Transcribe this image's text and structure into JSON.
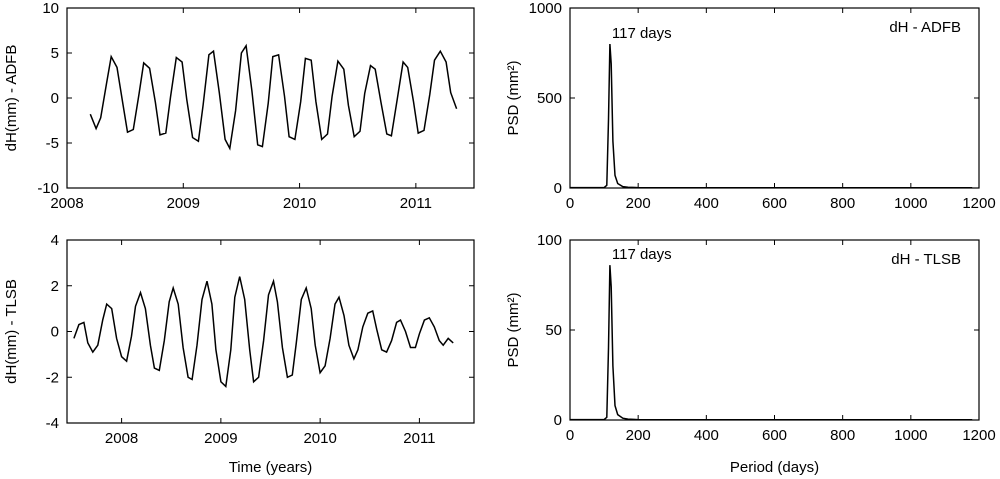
{
  "chart_data": [
    {
      "id": "adfb_ts",
      "type": "line",
      "title": "",
      "xlabel": "",
      "ylabel": "dH(mm) - ADFB",
      "xlim": [
        2008.0,
        2011.5
      ],
      "ylim": [
        -10,
        10
      ],
      "xticks": [
        2008,
        2009,
        2010,
        2011
      ],
      "xtick_labels": [
        "2008",
        "2009",
        "2010",
        "2011"
      ],
      "yticks": [
        -10,
        -5,
        0,
        5,
        10
      ],
      "ytick_labels": [
        "-10",
        "-5",
        "0",
        "5",
        "10"
      ],
      "series": [
        {
          "name": "dH ADFB",
          "x": [
            2008.2,
            2008.25,
            2008.29,
            2008.34,
            2008.38,
            2008.43,
            2008.48,
            2008.52,
            2008.57,
            2008.62,
            2008.66,
            2008.71,
            2008.76,
            2008.8,
            2008.85,
            2008.89,
            2008.94,
            2008.99,
            2009.03,
            2009.08,
            2009.13,
            2009.17,
            2009.22,
            2009.26,
            2009.31,
            2009.36,
            2009.4,
            2009.45,
            2009.5,
            2009.54,
            2009.59,
            2009.64,
            2009.68,
            2009.73,
            2009.77,
            2009.82,
            2009.87,
            2009.91,
            2009.96,
            2010.01,
            2010.05,
            2010.1,
            2010.14,
            2010.19,
            2010.24,
            2010.28,
            2010.33,
            2010.38,
            2010.42,
            2010.47,
            2010.52,
            2010.56,
            2010.61,
            2010.65,
            2010.7,
            2010.75,
            2010.79,
            2010.84,
            2010.89,
            2010.93,
            2010.98,
            2011.02,
            2011.07,
            2011.12,
            2011.16,
            2011.21,
            2011.26,
            2011.3,
            2011.35
          ],
          "y": [
            -1.8,
            -3.4,
            -2.2,
            1.6,
            4.6,
            3.4,
            -0.6,
            -3.8,
            -3.5,
            0.5,
            3.9,
            3.3,
            -0.5,
            -4.1,
            -3.9,
            0.1,
            4.5,
            4.0,
            -0.2,
            -4.4,
            -4.8,
            -0.8,
            4.8,
            5.2,
            0.6,
            -4.6,
            -5.6,
            -1.4,
            5.0,
            5.8,
            0.8,
            -5.2,
            -5.4,
            -0.6,
            4.6,
            4.8,
            0.2,
            -4.3,
            -4.6,
            -0.4,
            4.4,
            4.2,
            -0.4,
            -4.6,
            -4.0,
            0.2,
            4.1,
            3.2,
            -0.8,
            -4.3,
            -3.7,
            0.5,
            3.6,
            3.2,
            -0.5,
            -4.0,
            -4.2,
            -0.1,
            4.0,
            3.4,
            -0.4,
            -3.9,
            -3.6,
            0.4,
            4.2,
            5.2,
            4.0,
            0.6,
            -1.2
          ]
        }
      ]
    },
    {
      "id": "adfb_psd",
      "type": "line",
      "title": "dH - ADFB",
      "xlabel": "",
      "ylabel": "PSD (mm²)",
      "xlim": [
        0,
        1200
      ],
      "ylim": [
        0,
        1000
      ],
      "xticks": [
        0,
        200,
        400,
        600,
        800,
        1000,
        1200
      ],
      "xtick_labels": [
        "0",
        "200",
        "400",
        "600",
        "800",
        "1000",
        "1200"
      ],
      "yticks": [
        0,
        500,
        1000
      ],
      "ytick_labels": [
        "0",
        "500",
        "1000"
      ],
      "annotation": "117 days",
      "series": [
        {
          "name": "PSD ADFB",
          "x": [
            0,
            100,
            108,
            113,
            117,
            121,
            126,
            132,
            140,
            155,
            170,
            200,
            400,
            600,
            800,
            1000,
            1180
          ],
          "y": [
            2,
            2,
            15,
            380,
            800,
            690,
            260,
            70,
            25,
            8,
            4,
            2,
            1,
            1,
            1,
            1,
            1
          ]
        }
      ]
    },
    {
      "id": "tlsb_ts",
      "type": "line",
      "title": "",
      "xlabel": "Time (years)",
      "ylabel": "dH(mm) - TLSB",
      "xlim": [
        2007.45,
        2011.55
      ],
      "ylim": [
        -4,
        4
      ],
      "xticks": [
        2008,
        2009,
        2010,
        2011
      ],
      "xtick_labels": [
        "2008",
        "2009",
        "2010",
        "2011"
      ],
      "yticks": [
        -4,
        -2,
        0,
        2,
        4
      ],
      "ytick_labels": [
        "-4",
        "-2",
        "0",
        "2",
        "4"
      ],
      "series": [
        {
          "name": "dH TLSB",
          "x": [
            2007.52,
            2007.57,
            2007.62,
            2007.66,
            2007.71,
            2007.76,
            2007.81,
            2007.85,
            2007.9,
            2007.95,
            2008.0,
            2008.05,
            2008.1,
            2008.14,
            2008.19,
            2008.24,
            2008.29,
            2008.33,
            2008.38,
            2008.43,
            2008.48,
            2008.52,
            2008.57,
            2008.62,
            2008.67,
            2008.71,
            2008.76,
            2008.81,
            2008.86,
            2008.91,
            2008.95,
            2009.0,
            2009.05,
            2009.1,
            2009.14,
            2009.19,
            2009.24,
            2009.29,
            2009.33,
            2009.38,
            2009.43,
            2009.48,
            2009.53,
            2009.57,
            2009.62,
            2009.67,
            2009.72,
            2009.76,
            2009.81,
            2009.86,
            2009.91,
            2009.95,
            2010.0,
            2010.05,
            2010.1,
            2010.15,
            2010.19,
            2010.24,
            2010.29,
            2010.34,
            2010.38,
            2010.43,
            2010.48,
            2010.53,
            2010.57,
            2010.62,
            2010.67,
            2010.72,
            2010.77,
            2010.81,
            2010.86,
            2010.91,
            2010.96,
            2011.0,
            2011.05,
            2011.1,
            2011.15,
            2011.2,
            2011.24,
            2011.29,
            2011.34
          ],
          "y": [
            -0.3,
            0.3,
            0.4,
            -0.5,
            -0.9,
            -0.6,
            0.5,
            1.2,
            1.0,
            -0.3,
            -1.1,
            -1.3,
            -0.2,
            1.1,
            1.7,
            1.0,
            -0.6,
            -1.6,
            -1.7,
            -0.4,
            1.3,
            1.9,
            1.2,
            -0.7,
            -2.0,
            -2.1,
            -0.6,
            1.4,
            2.2,
            1.2,
            -0.8,
            -2.2,
            -2.4,
            -0.8,
            1.5,
            2.4,
            1.4,
            -0.8,
            -2.2,
            -2.0,
            -0.4,
            1.6,
            2.2,
            1.3,
            -0.7,
            -2.0,
            -1.9,
            -0.5,
            1.4,
            1.9,
            1.0,
            -0.6,
            -1.8,
            -1.5,
            -0.3,
            1.2,
            1.5,
            0.7,
            -0.6,
            -1.2,
            -0.8,
            0.2,
            0.8,
            0.9,
            0.1,
            -0.8,
            -0.9,
            -0.4,
            0.4,
            0.5,
            0.0,
            -0.7,
            -0.7,
            -0.1,
            0.5,
            0.6,
            0.2,
            -0.4,
            -0.6,
            -0.3,
            -0.5
          ]
        }
      ]
    },
    {
      "id": "tlsb_psd",
      "type": "line",
      "title": "dH - TLSB",
      "xlabel": "Period (days)",
      "ylabel": "PSD (mm²)",
      "xlim": [
        0,
        1200
      ],
      "ylim": [
        0,
        100
      ],
      "xticks": [
        0,
        200,
        400,
        600,
        800,
        1000,
        1200
      ],
      "xtick_labels": [
        "0",
        "200",
        "400",
        "600",
        "800",
        "1000",
        "1200"
      ],
      "yticks": [
        0,
        50,
        100
      ],
      "ytick_labels": [
        "0",
        "50",
        "100"
      ],
      "annotation": "117 days",
      "series": [
        {
          "name": "PSD TLSB",
          "x": [
            0,
            100,
            108,
            113,
            117,
            121,
            126,
            132,
            140,
            155,
            170,
            200,
            400,
            600,
            800,
            1000,
            1180
          ],
          "y": [
            0.2,
            0.2,
            1.5,
            40,
            86,
            74,
            30,
            8,
            3,
            1,
            0.5,
            0.2,
            0.1,
            0.1,
            0.1,
            0.1,
            0.1
          ]
        }
      ]
    }
  ]
}
